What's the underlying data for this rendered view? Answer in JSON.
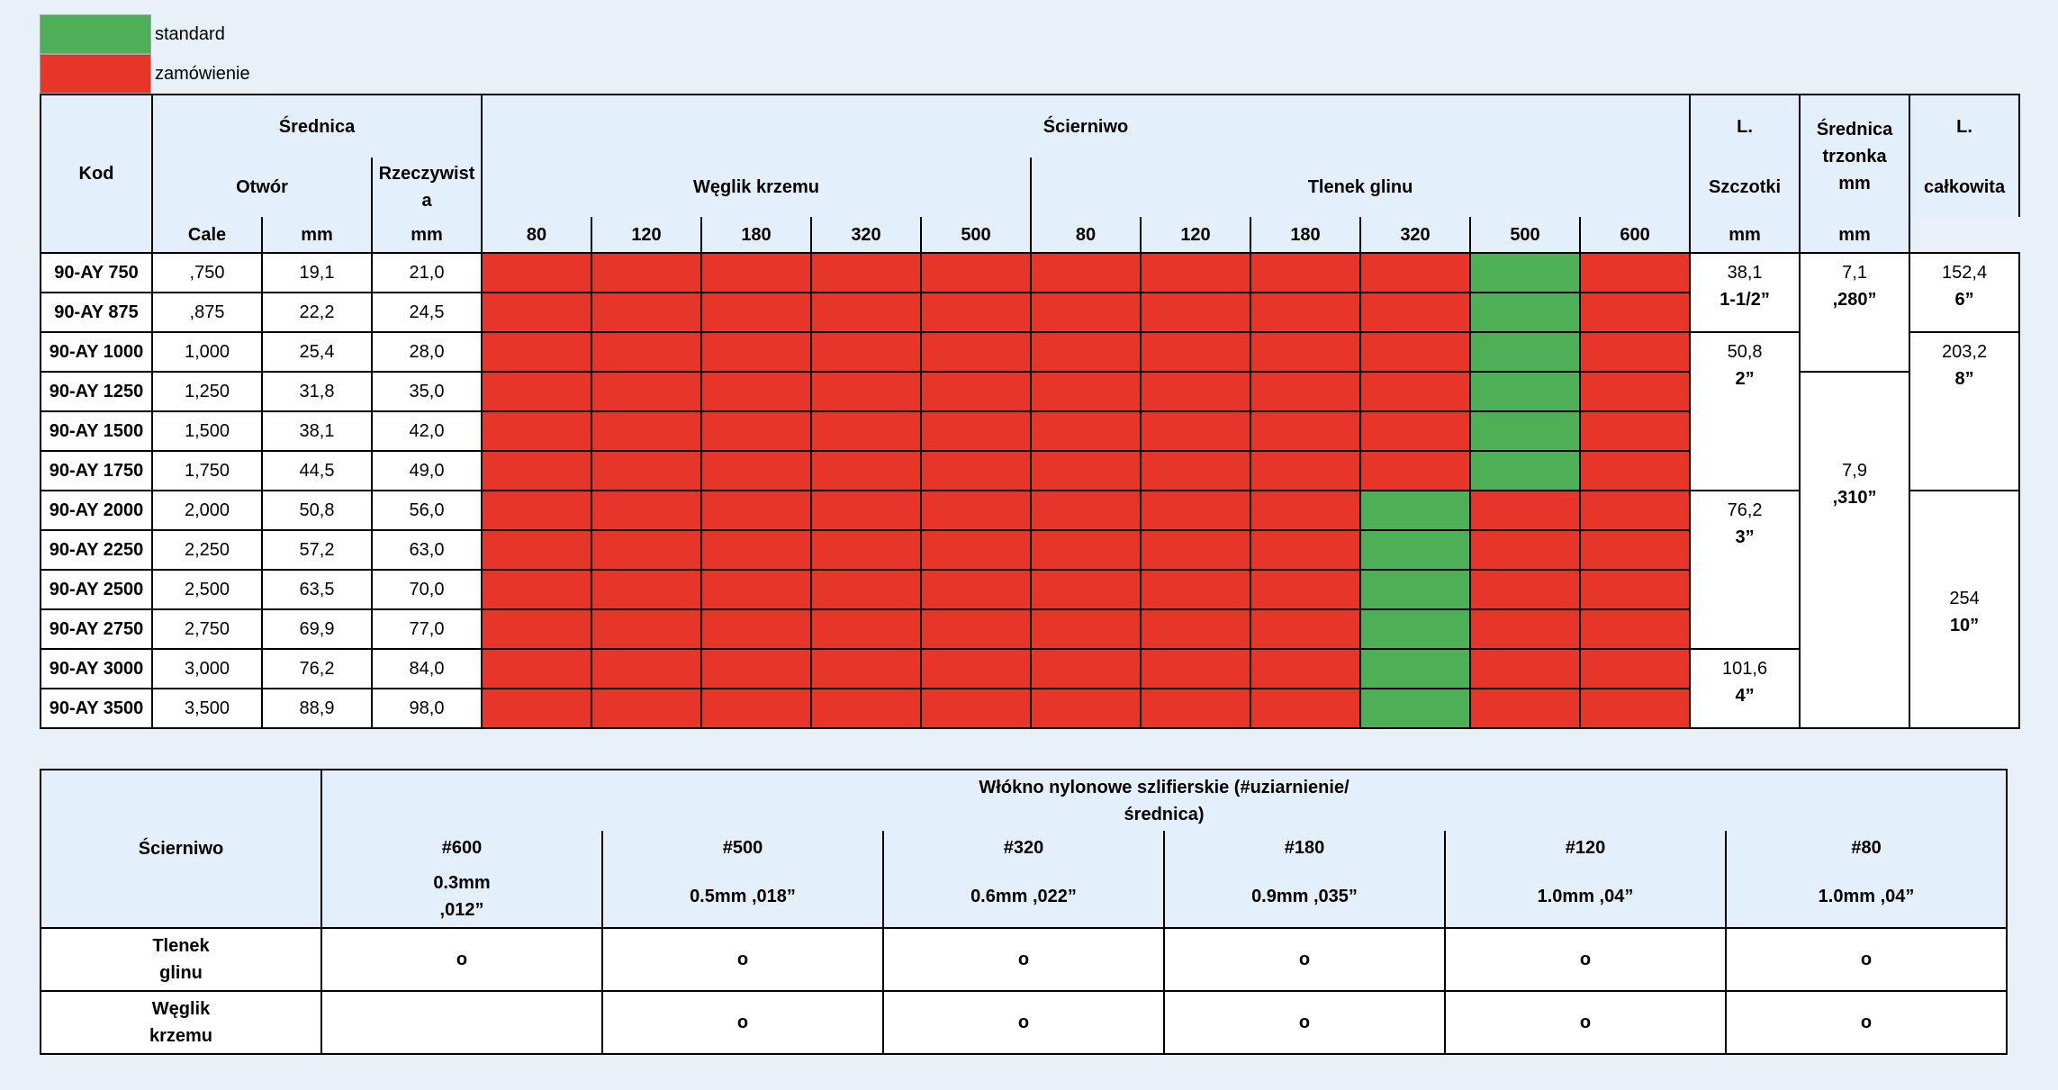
{
  "legend": [
    {
      "label": "standard",
      "color": "#4daf56"
    },
    {
      "label": "zamówienie",
      "color": "#e8352a"
    }
  ],
  "table1": {
    "headers": {
      "kod": "Kod",
      "srednica": "Średnica",
      "otwor": "Otwór",
      "rzeczywista_line1": "Rzeczywist",
      "rzeczywista_line2": "a",
      "cale": "Cale",
      "mm": "mm",
      "scierniwo": "Ścierniwo",
      "weglik": "Węglik krzemu",
      "tlenek": "Tlenek glinu",
      "weglik_grits": [
        "80",
        "120",
        "180",
        "320",
        "500"
      ],
      "tlenek_grits": [
        "80",
        "120",
        "180",
        "320",
        "500",
        "600"
      ],
      "l_szczotki_1": "L.",
      "l_szczotki_2": "Szczotki",
      "srednica_trzonka_1": "Średnica",
      "srednica_trzonka_2": "trzonka",
      "srednica_trzonka_3": "mm",
      "l_calkowita_1": "L.",
      "l_calkowita_2": "całkowita"
    },
    "rows": [
      {
        "kod": "90-AY 750",
        "cale": ",750",
        "mm": "19,1",
        "rzecz": "21,0",
        "std": 9
      },
      {
        "kod": "90-AY 875",
        "cale": ",875",
        "mm": "22,2",
        "rzecz": "24,5",
        "std": 9
      },
      {
        "kod": "90-AY 1000",
        "cale": "1,000",
        "mm": "25,4",
        "rzecz": "28,0",
        "std": 9
      },
      {
        "kod": "90-AY 1250",
        "cale": "1,250",
        "mm": "31,8",
        "rzecz": "35,0",
        "std": 9
      },
      {
        "kod": "90-AY 1500",
        "cale": "1,500",
        "mm": "38,1",
        "rzecz": "42,0",
        "std": 9
      },
      {
        "kod": "90-AY 1750",
        "cale": "1,750",
        "mm": "44,5",
        "rzecz": "49,0",
        "std": 9
      },
      {
        "kod": "90-AY 2000",
        "cale": "2,000",
        "mm": "50,8",
        "rzecz": "56,0",
        "std": 8
      },
      {
        "kod": "90-AY 2250",
        "cale": "2,250",
        "mm": "57,2",
        "rzecz": "63,0",
        "std": 8
      },
      {
        "kod": "90-AY 2500",
        "cale": "2,500",
        "mm": "63,5",
        "rzecz": "70,0",
        "std": 8
      },
      {
        "kod": "90-AY 2750",
        "cale": "2,750",
        "mm": "69,9",
        "rzecz": "77,0",
        "std": 8
      },
      {
        "kod": "90-AY 3000",
        "cale": "3,000",
        "mm": "76,2",
        "rzecz": "84,0",
        "std": 8
      },
      {
        "kod": "90-AY 3500",
        "cale": "3,500",
        "mm": "88,9",
        "rzecz": "98,0",
        "std": 8
      }
    ],
    "l_szczotki": [
      {
        "mm": "38,1",
        "inch": "1-1/2”"
      },
      {
        "mm": "50,8",
        "inch": "2”"
      },
      {
        "mm": "76,2",
        "inch": "3”"
      },
      {
        "mm": "101,6",
        "inch": "4”"
      }
    ],
    "srednica_trzonka": [
      {
        "mm": "7,1",
        "inch": ",280”"
      },
      {
        "mm": "7,9",
        "inch": ",310”"
      }
    ],
    "l_calkowita": [
      {
        "mm": "152,4",
        "inch": "6”"
      },
      {
        "mm": "203,2",
        "inch": "8”"
      },
      {
        "mm": "254",
        "inch": "10”"
      }
    ]
  },
  "table2": {
    "scierniwo": "Ścierniwo",
    "title_line1": "Włókno nylonowe szlifierskie (#uziarnienie/",
    "title_line2": "średnica)",
    "grits": [
      {
        "grit": "#600",
        "size_line1": "0.3mm",
        "size_line2": ",012”"
      },
      {
        "grit": "#500",
        "size_line1": "0.5mm ,018”",
        "size_line2": ""
      },
      {
        "grit": "#320",
        "size_line1": "0.6mm ,022”",
        "size_line2": ""
      },
      {
        "grit": "#180",
        "size_line1": "0.9mm ,035”",
        "size_line2": ""
      },
      {
        "grit": "#120",
        "size_line1": "1.0mm ,04”",
        "size_line2": ""
      },
      {
        "grit": "#80",
        "size_line1": "1.0mm ,04”",
        "size_line2": ""
      }
    ],
    "rows": [
      {
        "name_line1": "Tlenek",
        "name_line2": "glinu",
        "marks": [
          "o",
          "o",
          "o",
          "o",
          "o",
          "o"
        ]
      },
      {
        "name_line1": "Węglik",
        "name_line2": "krzemu",
        "marks": [
          "",
          "o",
          "o",
          "o",
          "o",
          "o"
        ]
      }
    ]
  }
}
